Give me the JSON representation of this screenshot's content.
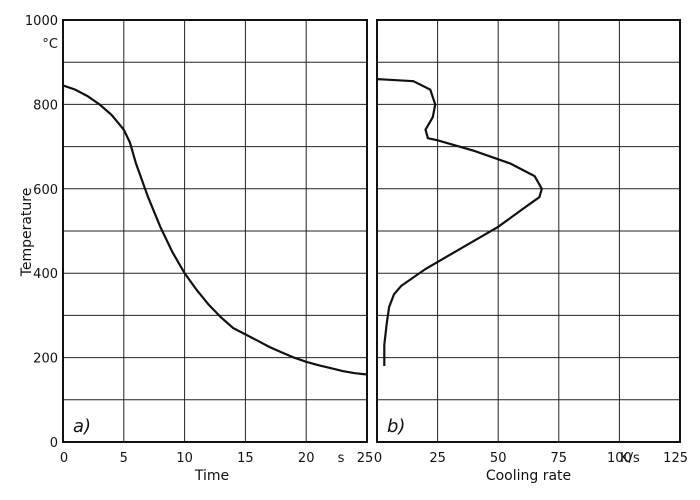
{
  "chart_data": [
    {
      "type": "line",
      "panel_label": "a)",
      "xlabel": "Time",
      "x_unit": "s",
      "ylabel": "Temperature",
      "y_unit": "°C",
      "xlim": [
        0,
        25
      ],
      "ylim": [
        0,
        1000
      ],
      "x_ticks": [
        "0",
        "5",
        "10",
        "15",
        "20",
        "25"
      ],
      "y_ticks": [
        "0",
        "200",
        "400",
        "600",
        "800",
        "1000"
      ],
      "grid": true,
      "series": [
        {
          "x": [
            0,
            1,
            2,
            3,
            4,
            5,
            5.5,
            6,
            7,
            8,
            9,
            10,
            11,
            12,
            13,
            14,
            15,
            16,
            17,
            18,
            19,
            20,
            21,
            22,
            23,
            24,
            25
          ],
          "y": [
            845,
            835,
            820,
            800,
            775,
            740,
            710,
            660,
            580,
            510,
            450,
            400,
            360,
            325,
            295,
            270,
            255,
            240,
            225,
            212,
            200,
            190,
            182,
            175,
            168,
            163,
            160
          ]
        }
      ]
    },
    {
      "type": "line",
      "panel_label": "b)",
      "xlabel": "Cooling rate",
      "x_unit": "K/s",
      "xlim": [
        0,
        125
      ],
      "ylim": [
        0,
        1000
      ],
      "x_ticks": [
        "0",
        "25",
        "50",
        "75",
        "100",
        "125"
      ],
      "grid": true,
      "series": [
        {
          "x": [
            0,
            15,
            22,
            24,
            23,
            20,
            21,
            25,
            40,
            55,
            65,
            68,
            67,
            62,
            50,
            35,
            20,
            10,
            7,
            5,
            4,
            3,
            3
          ],
          "y": [
            860,
            855,
            835,
            800,
            770,
            740,
            720,
            715,
            690,
            660,
            630,
            600,
            580,
            560,
            510,
            460,
            410,
            370,
            350,
            320,
            280,
            230,
            180
          ]
        }
      ]
    }
  ]
}
